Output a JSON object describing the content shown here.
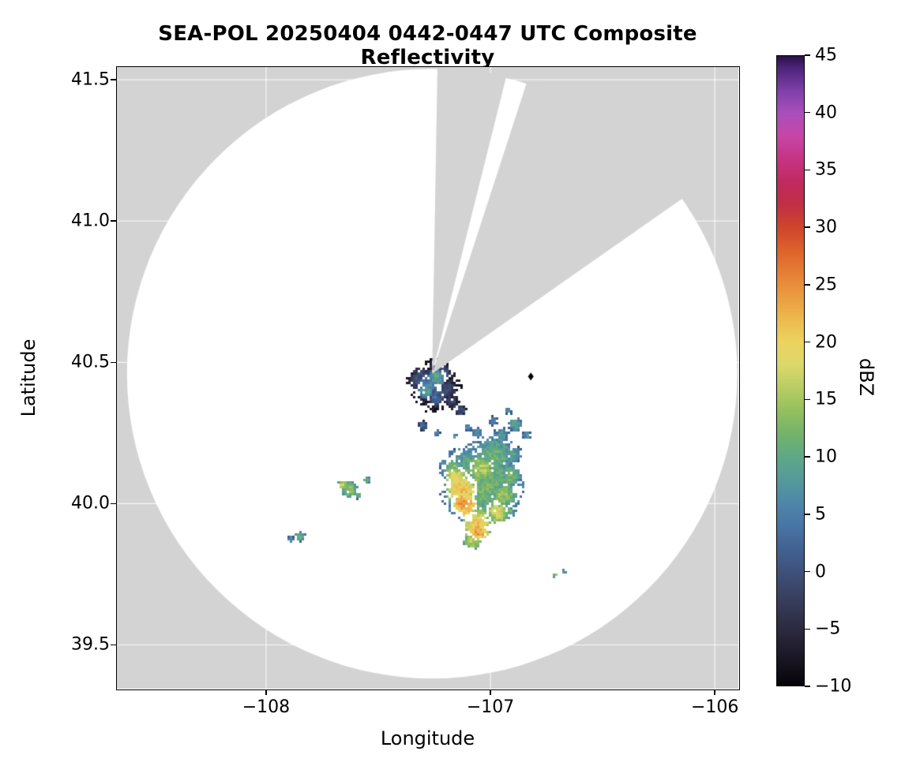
{
  "chart_data": {
    "type": "heatmap",
    "title": "SEA-POL 20250404 0442-0447 UTC Composite Reflectivity",
    "xlabel": "Longitude",
    "ylabel": "Latitude",
    "xlim": [
      -108.665,
      -105.895
    ],
    "ylim": [
      39.345,
      41.545
    ],
    "grid": true,
    "gridline_color": "#ffffff",
    "background_color": "#d3d3d3",
    "data_region_color": "#ffffff",
    "axes_color": "#000000",
    "x_ticks": [
      {
        "value": -108,
        "label": "−108"
      },
      {
        "value": -107,
        "label": "−107"
      },
      {
        "value": -106,
        "label": "−106"
      }
    ],
    "y_ticks": [
      {
        "value": 41.5,
        "label": "41.5"
      },
      {
        "value": 41.0,
        "label": "41.0"
      },
      {
        "value": 40.5,
        "label": "40.5"
      },
      {
        "value": 40.0,
        "label": "40.0"
      },
      {
        "value": 39.5,
        "label": "39.5"
      }
    ],
    "radar_coverage": {
      "center_lon": -107.26,
      "center_lat": 40.46,
      "radius_deg_lon": 1.36
    },
    "blocked_sectors_deg_from_north": [
      {
        "from": 1,
        "to": 14
      },
      {
        "from": 18,
        "to": 55
      }
    ],
    "site_marker": {
      "lon": -106.82,
      "lat": 40.45,
      "shape": "diamond",
      "color": "#000000"
    },
    "colorbar": {
      "label": "dBZ",
      "min": -10,
      "max": 45,
      "tick_values": [
        45,
        40,
        35,
        30,
        25,
        20,
        15,
        10,
        5,
        0,
        -5,
        -10
      ],
      "tick_labels": [
        "45",
        "40",
        "35",
        "30",
        "25",
        "20",
        "15",
        "10",
        "5",
        "0",
        "−5",
        "−10"
      ],
      "stops": [
        [
          -10,
          "#050308"
        ],
        [
          -8,
          "#17141f"
        ],
        [
          -6,
          "#262336"
        ],
        [
          -4,
          "#31324c"
        ],
        [
          -2,
          "#394263"
        ],
        [
          0,
          "#3e527b"
        ],
        [
          2,
          "#426292"
        ],
        [
          4,
          "#4875a6"
        ],
        [
          6,
          "#4e87a8"
        ],
        [
          8,
          "#559a9b"
        ],
        [
          10,
          "#5fa886"
        ],
        [
          12,
          "#74b36a"
        ],
        [
          14,
          "#94c05e"
        ],
        [
          16,
          "#b8cd64"
        ],
        [
          18,
          "#dcd86b"
        ],
        [
          20,
          "#ecd35f"
        ],
        [
          22,
          "#ecb94e"
        ],
        [
          24,
          "#ea9c41"
        ],
        [
          26,
          "#e67f35"
        ],
        [
          28,
          "#dd622c"
        ],
        [
          30,
          "#cf452c"
        ],
        [
          32,
          "#c12f44"
        ],
        [
          34,
          "#c02a60"
        ],
        [
          36,
          "#c63383"
        ],
        [
          38,
          "#c646a6"
        ],
        [
          40,
          "#a94fbb"
        ],
        [
          42,
          "#7e3fa9"
        ],
        [
          44,
          "#4c2378"
        ],
        [
          45,
          "#2a1147"
        ]
      ]
    },
    "echo_cells_format": "[lon, lat, radius_deg, dbz]",
    "echo_cells": [
      [
        -107.25,
        40.42,
        0.11,
        -3
      ],
      [
        -107.31,
        40.44,
        0.05,
        1
      ],
      [
        -107.2,
        40.4,
        0.05,
        -1
      ],
      [
        -107.27,
        40.42,
        0.045,
        6
      ],
      [
        -107.24,
        40.445,
        0.035,
        10
      ],
      [
        -107.29,
        40.4,
        0.032,
        9
      ],
      [
        -107.24,
        40.375,
        0.035,
        3
      ],
      [
        -107.17,
        40.36,
        0.033,
        -2
      ],
      [
        -107.13,
        40.33,
        0.025,
        0
      ],
      [
        -107.35,
        40.44,
        0.028,
        -4
      ],
      [
        -107.21,
        40.465,
        0.03,
        2
      ],
      [
        -107.3,
        40.275,
        0.022,
        3
      ],
      [
        -107.24,
        40.25,
        0.015,
        6
      ],
      [
        -107.1,
        40.27,
        0.018,
        5
      ],
      [
        -107.16,
        40.24,
        0.013,
        8
      ],
      [
        -107.04,
        40.07,
        0.165,
        12
      ],
      [
        -106.98,
        40.17,
        0.085,
        11
      ],
      [
        -107.1,
        40.15,
        0.06,
        10
      ],
      [
        -107.13,
        40.05,
        0.062,
        21
      ],
      [
        -107.12,
        40.0,
        0.05,
        24
      ],
      [
        -107.15,
        40.09,
        0.045,
        19
      ],
      [
        -107.04,
        40.12,
        0.055,
        16
      ],
      [
        -107.06,
        39.92,
        0.055,
        21
      ],
      [
        -107.05,
        39.9,
        0.035,
        24
      ],
      [
        -107.05,
        39.95,
        0.05,
        15
      ],
      [
        -106.94,
        40.03,
        0.055,
        14
      ],
      [
        -106.91,
        40.1,
        0.045,
        12
      ],
      [
        -106.9,
        40.17,
        0.04,
        9
      ],
      [
        -107.17,
        40.12,
        0.04,
        14
      ],
      [
        -107.08,
        39.87,
        0.04,
        16
      ],
      [
        -106.97,
        39.97,
        0.045,
        18
      ],
      [
        -106.92,
        39.97,
        0.03,
        12
      ],
      [
        -106.95,
        40.24,
        0.035,
        8
      ],
      [
        -106.89,
        40.28,
        0.028,
        10
      ],
      [
        -106.99,
        40.29,
        0.022,
        6
      ],
      [
        -106.84,
        40.24,
        0.02,
        8
      ],
      [
        -107.06,
        40.25,
        0.025,
        7
      ],
      [
        -106.92,
        40.33,
        0.018,
        7
      ],
      [
        -107.21,
        40.14,
        0.022,
        8
      ],
      [
        -107.17,
        40.18,
        0.018,
        5
      ],
      [
        -107.63,
        40.05,
        0.035,
        14
      ],
      [
        -107.66,
        40.065,
        0.02,
        17
      ],
      [
        -107.55,
        40.085,
        0.017,
        11
      ],
      [
        -107.59,
        40.03,
        0.015,
        12
      ],
      [
        -107.85,
        39.885,
        0.022,
        11
      ],
      [
        -107.89,
        39.875,
        0.014,
        9
      ],
      [
        -106.71,
        39.745,
        0.013,
        13
      ],
      [
        -106.67,
        39.76,
        0.01,
        11
      ]
    ]
  }
}
